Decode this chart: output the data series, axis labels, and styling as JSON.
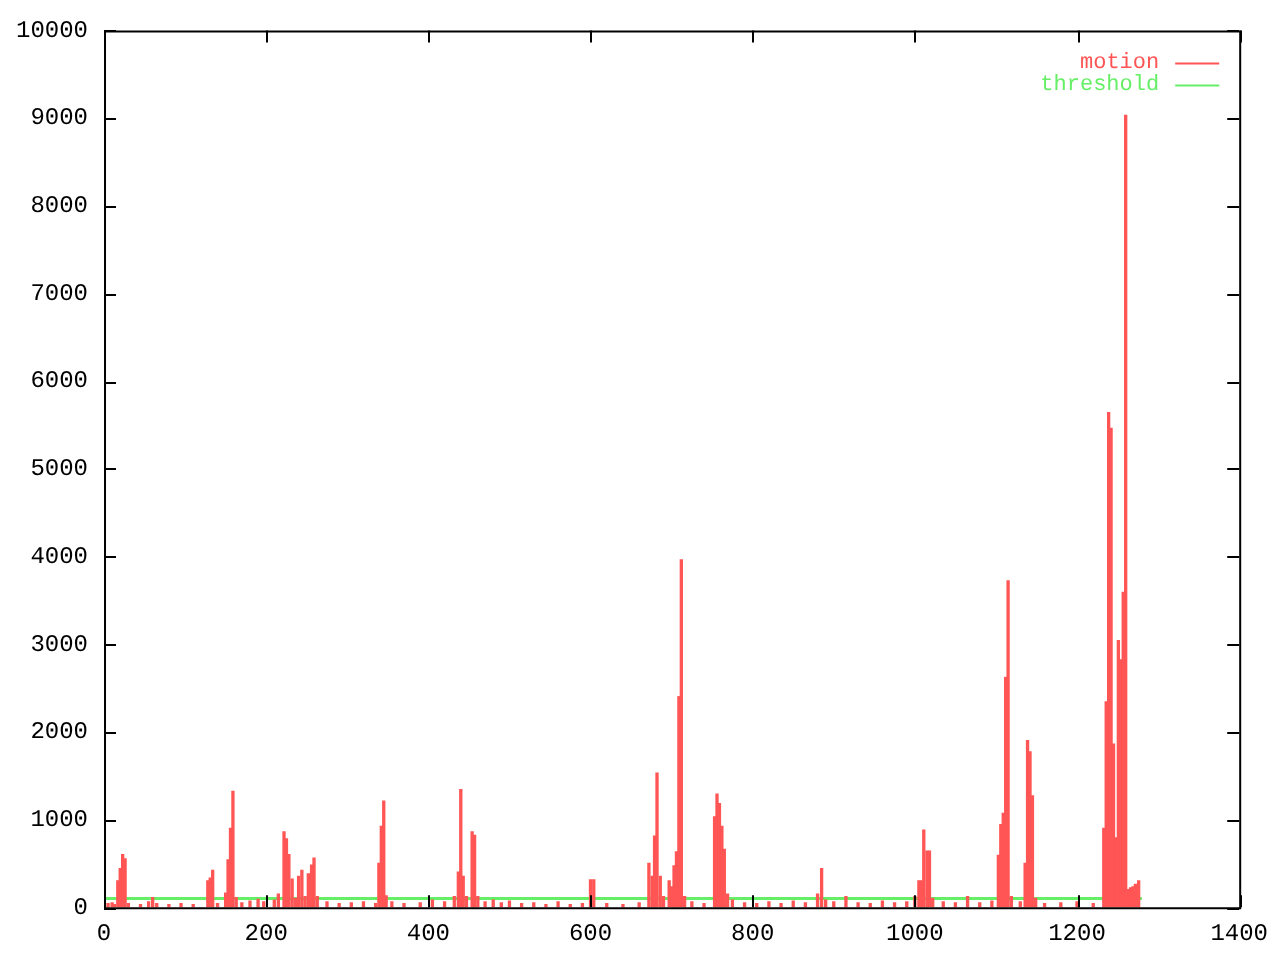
{
  "chart_data": {
    "type": "bar",
    "xlim": [
      0,
      1400
    ],
    "xticks": [
      0,
      200,
      400,
      600,
      800,
      1000,
      1200,
      1400
    ],
    "ylim": [
      0,
      10000
    ],
    "yticks": [
      0,
      1000,
      2000,
      3000,
      4000,
      5000,
      6000,
      7000,
      8000,
      9000,
      10000
    ],
    "grid": false,
    "legend": "top right",
    "series": [
      {
        "name": "motion",
        "color": "#ff5555",
        "x": [
          5,
          10,
          13,
          17,
          20,
          23,
          26,
          30,
          45,
          55,
          60,
          65,
          80,
          95,
          110,
          128,
          131,
          134,
          140,
          150,
          153,
          156,
          159,
          163,
          170,
          180,
          190,
          197,
          210,
          215,
          222,
          225,
          228,
          232,
          236,
          240,
          244,
          248,
          252,
          256,
          259,
          263,
          275,
          290,
          305,
          320,
          335,
          339,
          342,
          345,
          348,
          355,
          370,
          390,
          405,
          420,
          432,
          437,
          440,
          443,
          447,
          454,
          457,
          461,
          470,
          480,
          490,
          500,
          515,
          530,
          545,
          560,
          575,
          590,
          600,
          604,
          620,
          640,
          660,
          672,
          676,
          679,
          682,
          686,
          690,
          697,
          700,
          703,
          706,
          709,
          712,
          716,
          725,
          740,
          753,
          756,
          759,
          762,
          765,
          769,
          775,
          790,
          805,
          820,
          835,
          850,
          865,
          880,
          885,
          890,
          900,
          915,
          930,
          945,
          960,
          975,
          990,
          1000,
          1005,
          1008,
          1011,
          1015,
          1018,
          1022,
          1035,
          1050,
          1065,
          1080,
          1095,
          1103,
          1106,
          1109,
          1112,
          1115,
          1119,
          1130,
          1136,
          1139,
          1142,
          1145,
          1149,
          1160,
          1180,
          1200,
          1220,
          1233,
          1236,
          1239,
          1242,
          1245,
          1248,
          1251,
          1254,
          1257,
          1260,
          1263,
          1266,
          1269,
          1272,
          1276
        ],
        "values": [
          40,
          50,
          30,
          300,
          440,
          600,
          550,
          40,
          30,
          60,
          110,
          40,
          30,
          40,
          30,
          300,
          330,
          420,
          40,
          160,
          540,
          900,
          1320,
          110,
          50,
          70,
          90,
          60,
          80,
          150,
          860,
          780,
          600,
          320,
          100,
          350,
          420,
          120,
          380,
          480,
          560,
          120,
          60,
          40,
          50,
          60,
          40,
          500,
          920,
          1210,
          130,
          60,
          40,
          50,
          80,
          60,
          120,
          400,
          1340,
          350,
          120,
          860,
          820,
          120,
          60,
          80,
          50,
          70,
          40,
          50,
          30,
          60,
          30,
          40,
          310,
          310,
          40,
          30,
          50,
          500,
          350,
          810,
          1530,
          350,
          120,
          300,
          230,
          470,
          630,
          2400,
          3960,
          120,
          60,
          40,
          1030,
          1290,
          1180,
          920,
          660,
          150,
          80,
          50,
          40,
          60,
          40,
          70,
          50,
          150,
          440,
          80,
          60,
          120,
          50,
          40,
          70,
          50,
          60,
          120,
          300,
          300,
          880,
          640,
          640,
          100,
          60,
          50,
          120,
          50,
          70,
          590,
          940,
          1070,
          2620,
          3720,
          120,
          60,
          500,
          1900,
          1770,
          1270,
          100,
          40,
          50,
          60,
          40,
          900,
          2340,
          5640,
          5460,
          1860,
          790,
          3040,
          2820,
          3590,
          9030,
          200,
          220,
          230,
          260,
          300
        ]
      },
      {
        "name": "threshold",
        "type": "line",
        "color": "#66ee66",
        "x": [
          0,
          1280
        ],
        "values": [
          100,
          100
        ]
      }
    ]
  }
}
